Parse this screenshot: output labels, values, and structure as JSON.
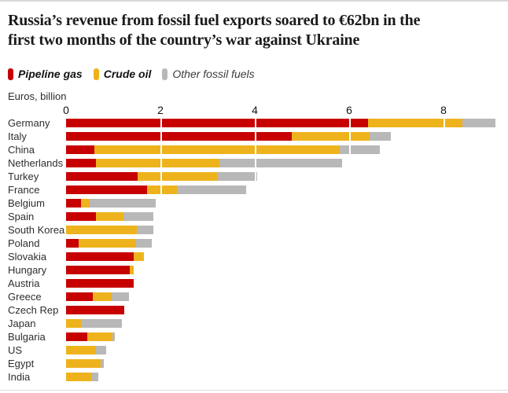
{
  "page": {
    "title_line1": "Russia’s revenue from fossil fuel exports soared to €62bn in the",
    "title_line2": "first two months of the country’s war against Ukraine"
  },
  "legend": {
    "items": [
      {
        "label": "Pipeline gas",
        "color": "#c70000",
        "style": "bold-italic"
      },
      {
        "label": "Crude oil",
        "color": "#eeb31c",
        "style": "bold-italic"
      },
      {
        "label": "Other fossil fuels",
        "color": "#b8b8b8",
        "style": "italic"
      }
    ]
  },
  "chart_data": {
    "type": "bar",
    "orientation": "horizontal",
    "stacked": true,
    "title": "Russia’s revenue from fossil fuel exports soared to €62bn in the first two months of the country’s war against Ukraine",
    "units_label": "Euros, billion",
    "x_ticks": [
      0,
      2,
      4,
      6,
      8
    ],
    "xlim": [
      0,
      9.27
    ],
    "grid": "white-lines-over-bars",
    "legend_position": "top",
    "categories": [
      "Germany",
      "Italy",
      "China",
      "Netherlands",
      "Turkey",
      "France",
      "Belgium",
      "Spain",
      "South Korea",
      "Poland",
      "Slovakia",
      "Hungary",
      "Austria",
      "Greece",
      "Czech Rep",
      "Japan",
      "Bulgaria",
      "US",
      "Egypt",
      "India"
    ],
    "series": [
      {
        "name": "Pipeline gas",
        "color": "#c70000",
        "values": [
          6.4,
          4.78,
          0.6,
          0.63,
          1.52,
          1.72,
          0.32,
          0.63,
          0,
          0.27,
          1.44,
          1.35,
          1.43,
          0.57,
          1.24,
          0,
          0.45,
          0,
          0,
          0
        ]
      },
      {
        "name": "Crude oil",
        "color": "#eeb31c",
        "values": [
          2.0,
          1.65,
          5.2,
          2.62,
          1.68,
          0.63,
          0.18,
          0.58,
          1.5,
          1.21,
          0.21,
          0.09,
          0,
          0.4,
          0,
          0.32,
          0.53,
          0.63,
          0.73,
          0.54
        ]
      },
      {
        "name": "Other fossil fuels",
        "color": "#b8b8b8",
        "values": [
          0.7,
          0.45,
          0.85,
          2.6,
          0.85,
          1.47,
          1.4,
          0.64,
          0.35,
          0.34,
          0,
          0,
          0,
          0.36,
          0,
          0.87,
          0.06,
          0.22,
          0.07,
          0.15
        ]
      }
    ],
    "totals": [
      9.1,
      6.88,
      6.65,
      5.85,
      4.05,
      3.82,
      1.9,
      1.85,
      1.85,
      1.82,
      1.65,
      1.44,
      1.43,
      1.33,
      1.24,
      1.19,
      1.04,
      0.85,
      0.8,
      0.69
    ]
  }
}
